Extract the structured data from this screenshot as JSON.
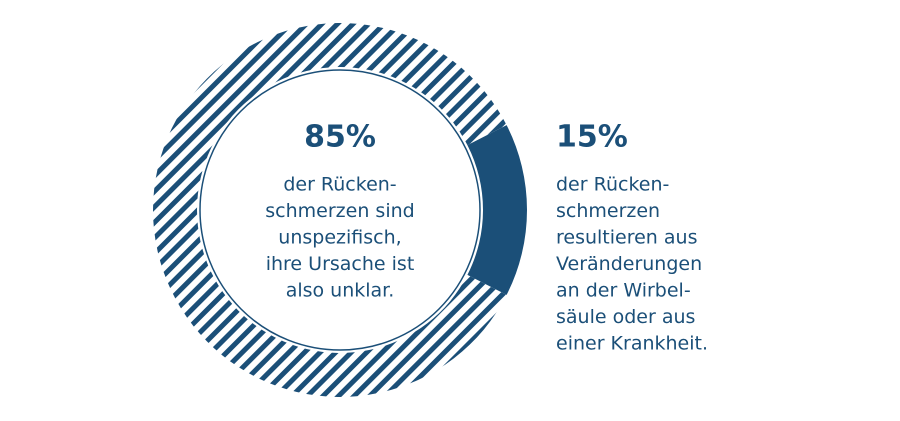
{
  "chart_data": {
    "type": "donut",
    "values": [
      85,
      15
    ],
    "value_labels": [
      "85%",
      "15%"
    ],
    "descriptions": [
      [
        "der Rücken-",
        "schmerzen sind",
        "unspezifisch,",
        "ihre Ursache ist",
        "also unklar."
      ],
      [
        "der Rücken-",
        "schmerzen",
        "resultieren aus",
        "Veränderungen",
        "an der Wirbel-",
        "säule oder aus",
        "einer Krankheit."
      ]
    ],
    "colors": [
      "#1b4f78",
      "#1b4f78"
    ],
    "fills": [
      "hatch",
      "solid"
    ]
  }
}
